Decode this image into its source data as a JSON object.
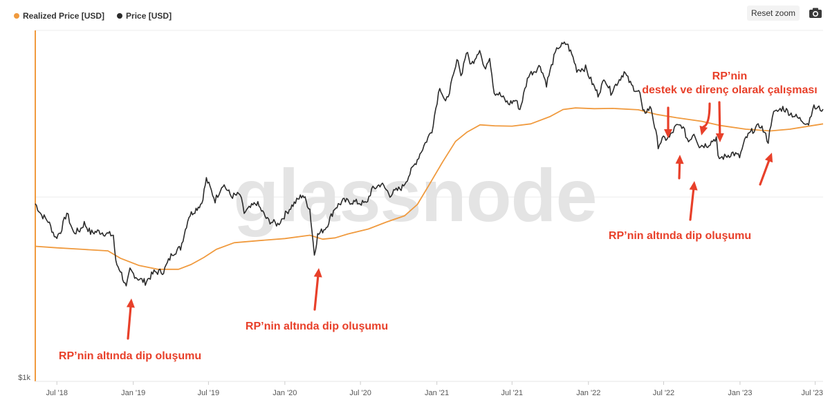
{
  "legend": [
    {
      "label": "Realized Price [USD]",
      "color": "#f09a3e"
    },
    {
      "label": "Price [USD]",
      "color": "#2b2b2b"
    }
  ],
  "toolbar": {
    "reset_zoom": "Reset zoom",
    "export_icon": "camera-icon"
  },
  "watermark": "glassnode",
  "chart_data": {
    "type": "line",
    "title": "",
    "xlabel": "",
    "ylabel": "",
    "y_scale": "log",
    "y_tick_labels": [
      "$1k"
    ],
    "x_tick_labels": [
      "Jul '18",
      "Jan '19",
      "Jul '19",
      "Jan '20",
      "Jul '20",
      "Jan '21",
      "Jul '21",
      "Jan '22",
      "Jul '22",
      "Jan '23",
      "Jul '23"
    ],
    "x_tick_dates": [
      "2018-07-01",
      "2019-01-01",
      "2019-07-01",
      "2020-01-01",
      "2020-07-01",
      "2021-01-01",
      "2021-07-01",
      "2022-01-01",
      "2022-07-01",
      "2023-01-01",
      "2023-07-01"
    ],
    "xlim": [
      "2018-05-10",
      "2023-07-20"
    ],
    "ylim": [
      1000,
      80000
    ],
    "grid": true,
    "legend_position": "top-left",
    "series": [
      {
        "name": "Realized Price [USD]",
        "color": "#f09a3e",
        "points": [
          [
            "2018-05-10",
            5400
          ],
          [
            "2018-07-01",
            5300
          ],
          [
            "2018-09-01",
            5200
          ],
          [
            "2018-11-01",
            5100
          ],
          [
            "2018-12-01",
            4650
          ],
          [
            "2019-01-15",
            4250
          ],
          [
            "2019-03-01",
            4050
          ],
          [
            "2019-04-20",
            4050
          ],
          [
            "2019-05-20",
            4300
          ],
          [
            "2019-06-20",
            4700
          ],
          [
            "2019-07-20",
            5200
          ],
          [
            "2019-09-01",
            5650
          ],
          [
            "2019-11-01",
            5800
          ],
          [
            "2020-01-01",
            5950
          ],
          [
            "2020-03-01",
            6200
          ],
          [
            "2020-04-01",
            5900
          ],
          [
            "2020-05-01",
            6000
          ],
          [
            "2020-06-01",
            6300
          ],
          [
            "2020-07-20",
            6700
          ],
          [
            "2020-09-01",
            7300
          ],
          [
            "2020-10-15",
            7900
          ],
          [
            "2020-11-15",
            9100
          ],
          [
            "2020-12-15",
            11800
          ],
          [
            "2021-01-15",
            15500
          ],
          [
            "2021-02-15",
            20000
          ],
          [
            "2021-03-15",
            22500
          ],
          [
            "2021-04-15",
            24600
          ],
          [
            "2021-05-20",
            24300
          ],
          [
            "2021-07-01",
            24200
          ],
          [
            "2021-08-15",
            24900
          ],
          [
            "2021-10-01",
            27300
          ],
          [
            "2021-11-01",
            29800
          ],
          [
            "2021-12-01",
            30400
          ],
          [
            "2022-01-15",
            30100
          ],
          [
            "2022-03-01",
            30200
          ],
          [
            "2022-05-01",
            29700
          ],
          [
            "2022-06-15",
            28000
          ],
          [
            "2022-08-01",
            26900
          ],
          [
            "2022-10-01",
            25700
          ],
          [
            "2022-11-15",
            24400
          ],
          [
            "2023-01-15",
            23300
          ],
          [
            "2023-03-15",
            22800
          ],
          [
            "2023-05-01",
            23300
          ],
          [
            "2023-07-20",
            24900
          ]
        ]
      },
      {
        "name": "Price [USD]",
        "color": "#2b2b2b",
        "points": [
          [
            "2018-05-10",
            9200
          ],
          [
            "2018-05-25",
            8000
          ],
          [
            "2018-06-10",
            7400
          ],
          [
            "2018-06-28",
            6000
          ],
          [
            "2018-07-10",
            6500
          ],
          [
            "2018-07-25",
            8200
          ],
          [
            "2018-08-10",
            6400
          ],
          [
            "2018-08-25",
            6600
          ],
          [
            "2018-09-05",
            7200
          ],
          [
            "2018-09-20",
            6400
          ],
          [
            "2018-10-10",
            6500
          ],
          [
            "2018-10-30",
            6300
          ],
          [
            "2018-11-14",
            6200
          ],
          [
            "2018-11-20",
            4400
          ],
          [
            "2018-12-01",
            4000
          ],
          [
            "2018-12-15",
            3200
          ],
          [
            "2018-12-24",
            4000
          ],
          [
            "2019-01-10",
            3650
          ],
          [
            "2019-01-30",
            3450
          ],
          [
            "2019-02-20",
            3900
          ],
          [
            "2019-03-15",
            3950
          ],
          [
            "2019-04-05",
            4950
          ],
          [
            "2019-04-25",
            5300
          ],
          [
            "2019-05-15",
            7900
          ],
          [
            "2019-06-01",
            8600
          ],
          [
            "2019-06-15",
            9300
          ],
          [
            "2019-06-26",
            12500
          ],
          [
            "2019-07-05",
            11200
          ],
          [
            "2019-07-17",
            9600
          ],
          [
            "2019-08-05",
            11800
          ],
          [
            "2019-08-25",
            10100
          ],
          [
            "2019-09-15",
            10300
          ],
          [
            "2019-09-25",
            8200
          ],
          [
            "2019-10-25",
            9300
          ],
          [
            "2019-11-20",
            7500
          ],
          [
            "2019-12-15",
            7100
          ],
          [
            "2020-01-15",
            8800
          ],
          [
            "2020-02-13",
            10300
          ],
          [
            "2020-03-01",
            8600
          ],
          [
            "2020-03-12",
            4900
          ],
          [
            "2020-03-20",
            6200
          ],
          [
            "2020-04-10",
            6900
          ],
          [
            "2020-04-30",
            8700
          ],
          [
            "2020-05-20",
            9500
          ],
          [
            "2020-06-15",
            9400
          ],
          [
            "2020-07-15",
            9200
          ],
          [
            "2020-07-28",
            10900
          ],
          [
            "2020-08-20",
            11800
          ],
          [
            "2020-09-10",
            10300
          ],
          [
            "2020-10-10",
            11300
          ],
          [
            "2020-10-25",
            13000
          ],
          [
            "2020-11-15",
            16000
          ],
          [
            "2020-12-01",
            19000
          ],
          [
            "2020-12-20",
            23000
          ],
          [
            "2021-01-08",
            40000
          ],
          [
            "2021-01-22",
            32000
          ],
          [
            "2021-02-10",
            45000
          ],
          [
            "2021-02-21",
            57000
          ],
          [
            "2021-02-28",
            45000
          ],
          [
            "2021-03-13",
            61000
          ],
          [
            "2021-03-25",
            52000
          ],
          [
            "2021-04-14",
            63500
          ],
          [
            "2021-04-25",
            49000
          ],
          [
            "2021-05-08",
            58000
          ],
          [
            "2021-05-19",
            37000
          ],
          [
            "2021-06-01",
            36000
          ],
          [
            "2021-06-22",
            32000
          ],
          [
            "2021-07-10",
            33500
          ],
          [
            "2021-07-20",
            29800
          ],
          [
            "2021-08-10",
            46000
          ],
          [
            "2021-08-25",
            48500
          ],
          [
            "2021-09-07",
            51500
          ],
          [
            "2021-09-22",
            41000
          ],
          [
            "2021-10-10",
            57000
          ],
          [
            "2021-10-20",
            65000
          ],
          [
            "2021-11-10",
            68000
          ],
          [
            "2021-11-25",
            57000
          ],
          [
            "2021-12-04",
            49000
          ],
          [
            "2021-12-25",
            50000
          ],
          [
            "2022-01-10",
            41500
          ],
          [
            "2022-01-24",
            36000
          ],
          [
            "2022-02-10",
            44000
          ],
          [
            "2022-02-24",
            37000
          ],
          [
            "2022-03-28",
            47500
          ],
          [
            "2022-04-15",
            40000
          ],
          [
            "2022-05-05",
            36500
          ],
          [
            "2022-05-12",
            28500
          ],
          [
            "2022-06-01",
            30500
          ],
          [
            "2022-06-18",
            19000
          ],
          [
            "2022-06-28",
            20500
          ],
          [
            "2022-07-15",
            21000
          ],
          [
            "2022-07-30",
            24000
          ],
          [
            "2022-08-14",
            24400
          ],
          [
            "2022-08-30",
            20000
          ],
          [
            "2022-09-12",
            22300
          ],
          [
            "2022-09-25",
            19000
          ],
          [
            "2022-10-15",
            19200
          ],
          [
            "2022-11-05",
            21000
          ],
          [
            "2022-11-09",
            16200
          ],
          [
            "2022-11-25",
            16500
          ],
          [
            "2022-12-15",
            17300
          ],
          [
            "2022-12-31",
            16500
          ],
          [
            "2023-01-15",
            20800
          ],
          [
            "2023-02-01",
            23000
          ],
          [
            "2023-02-20",
            24500
          ],
          [
            "2023-03-10",
            20000
          ],
          [
            "2023-03-20",
            28000
          ],
          [
            "2023-04-14",
            30400
          ],
          [
            "2023-05-01",
            28500
          ],
          [
            "2023-05-25",
            26400
          ],
          [
            "2023-06-15",
            25000
          ],
          [
            "2023-06-25",
            30500
          ],
          [
            "2023-07-10",
            30200
          ],
          [
            "2023-07-20",
            29900
          ]
        ]
      }
    ],
    "annotations": [
      {
        "lines": [
          "RP’nin altında dip oluşumu"
        ]
      },
      {
        "lines": [
          "RP’nin altında dip oluşumu"
        ]
      },
      {
        "lines": [
          "RP’nin altında dip oluşumu"
        ]
      },
      {
        "lines": [
          "RP’nin",
          "destek ve direnç olarak çalışması"
        ]
      }
    ]
  }
}
